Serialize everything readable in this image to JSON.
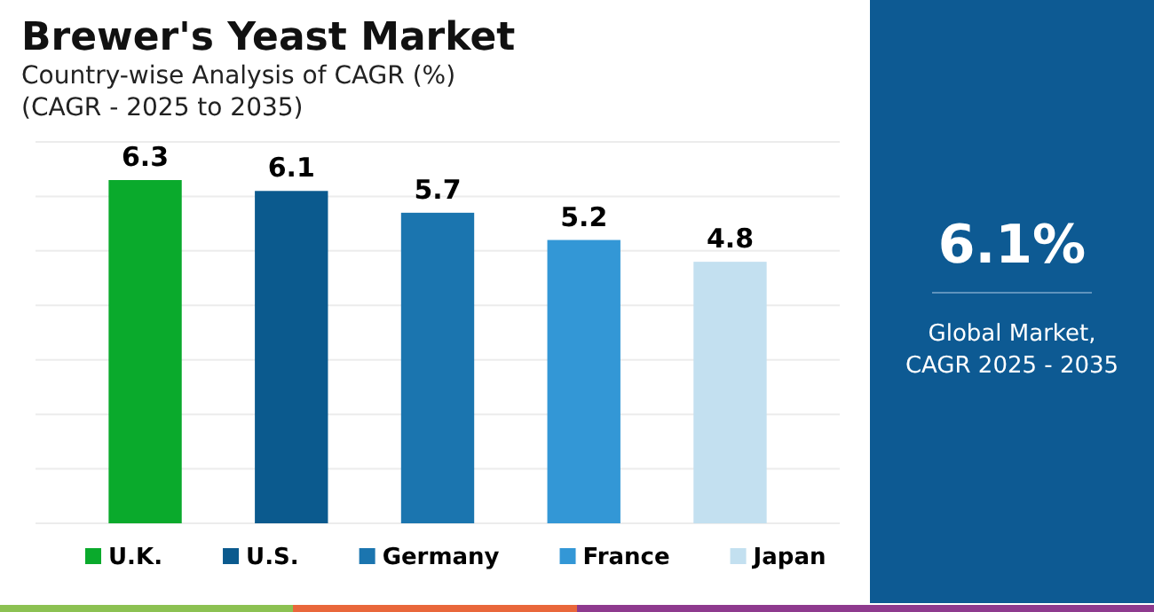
{
  "chart_data": [
    {
      "type": "bar",
      "title": "Brewer's Yeast Market",
      "subtitle": "Country-wise Analysis of CAGR (%)\n(CAGR - 2025 to 2035)",
      "categories": [
        null,
        null,
        null,
        null,
        null
      ],
      "series": [
        {
          "name": "U.K.",
          "color": "#0aaa2c",
          "values": [
            6.3,
            null,
            null,
            null,
            null
          ]
        },
        {
          "name": "U.S.",
          "color": "#0b5a8e",
          "values": [
            null,
            6.1,
            null,
            null,
            null
          ]
        },
        {
          "name": "Germany",
          "color": "#1b75af",
          "values": [
            null,
            null,
            5.7,
            null,
            null
          ]
        },
        {
          "name": "France",
          "color": "#3397d6",
          "values": [
            null,
            null,
            null,
            5.2,
            null
          ]
        },
        {
          "name": "Japan",
          "color": "#c3e0f0",
          "values": [
            null,
            null,
            null,
            null,
            4.8
          ]
        }
      ],
      "stacked": true,
      "ylim": [
        0,
        7
      ],
      "yticks": [
        {
          "value": 0,
          "label": null
        },
        {
          "value": 1,
          "label": null
        },
        {
          "value": 2,
          "label": null
        },
        {
          "value": 3,
          "label": null
        },
        {
          "value": 4,
          "label": null
        },
        {
          "value": 5,
          "label": null
        },
        {
          "value": 6,
          "label": null
        },
        {
          "value": 7,
          "label": null
        }
      ],
      "grid": "y",
      "data_labels": true,
      "legend": "bottom"
    },
    {
      "type": "other",
      "title": "6.1%",
      "annotations": [
        "Global Market,",
        "CAGR 2025 - 2035"
      ]
    }
  ]
}
